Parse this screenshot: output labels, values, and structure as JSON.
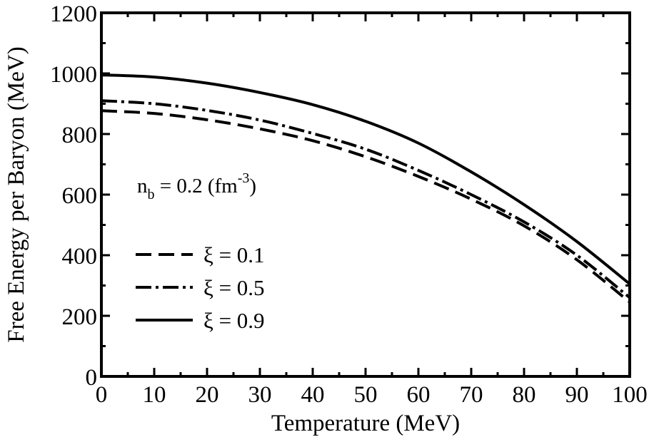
{
  "chart_data": {
    "type": "line",
    "xlabel": "Temperature (MeV)",
    "ylabel": "Free Energy per Baryon (MeV)",
    "xlim": [
      0,
      100
    ],
    "ylim": [
      0,
      1200
    ],
    "xticks": [
      0,
      10,
      20,
      30,
      40,
      50,
      60,
      70,
      80,
      90,
      100
    ],
    "yticks": [
      0,
      200,
      400,
      600,
      800,
      1000,
      1200
    ],
    "grid": false,
    "legend_position": "bottom-left",
    "annotation": {
      "base": "n",
      "subscript": "b",
      "value_text": " = 0.2 (fm",
      "superscript": "-3",
      "close": ")"
    },
    "x": [
      0,
      10,
      20,
      30,
      40,
      50,
      60,
      70,
      80,
      90,
      100
    ],
    "series": [
      {
        "name": "ξ = 0.1",
        "style": "dashed",
        "values": [
          877,
          868,
          847,
          817,
          778,
          725,
          660,
          585,
          497,
          385,
          245
        ]
      },
      {
        "name": "ξ = 0.5",
        "style": "dash-dot",
        "values": [
          910,
          900,
          878,
          846,
          802,
          750,
          680,
          600,
          510,
          400,
          260
        ]
      },
      {
        "name": "ξ = 0.9",
        "style": "solid",
        "values": [
          995,
          988,
          968,
          937,
          897,
          842,
          770,
          675,
          567,
          445,
          305
        ]
      }
    ]
  }
}
